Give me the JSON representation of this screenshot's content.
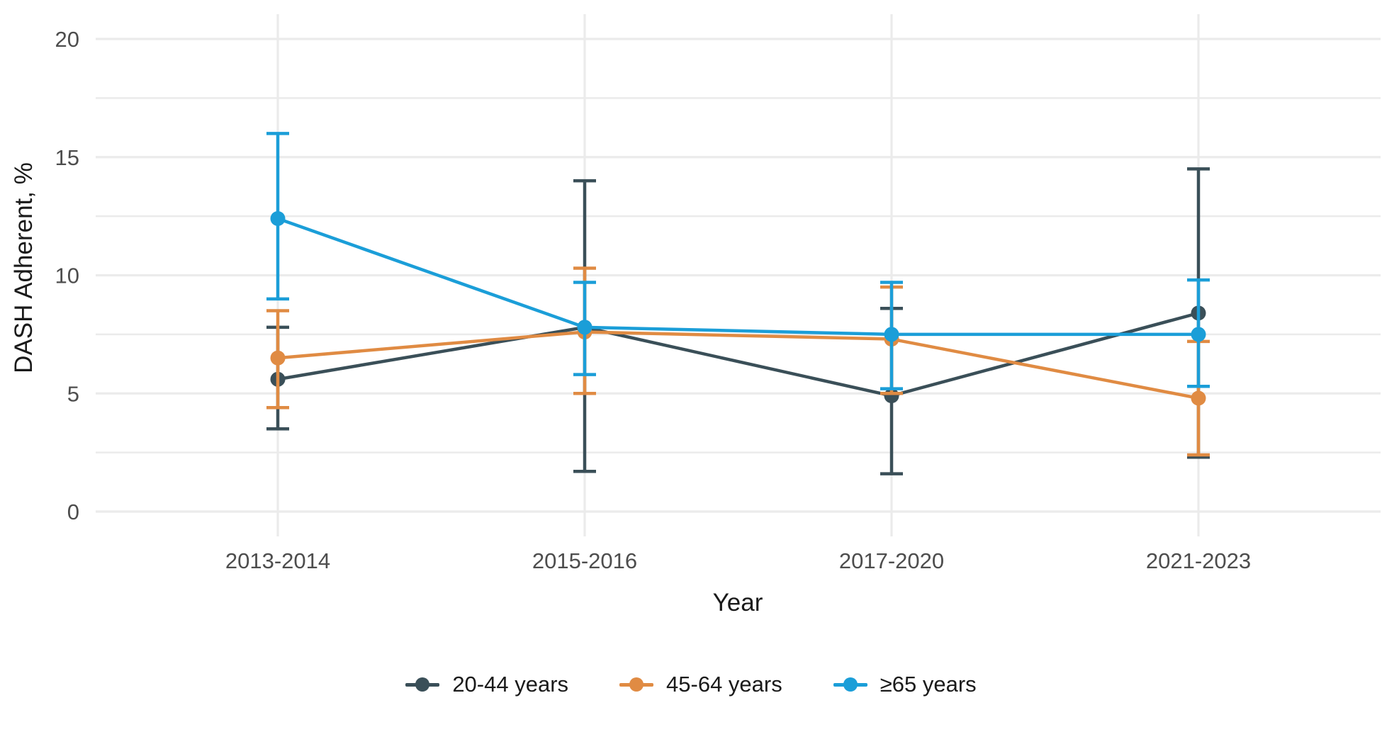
{
  "chart_data": {
    "type": "line",
    "title": "",
    "xlabel": "Year",
    "ylabel": "DASH Adherent, %",
    "categories": [
      "2013-2014",
      "2015-2016",
      "2017-2020",
      "2021-2023"
    ],
    "y_ticks": [
      0,
      5,
      10,
      15,
      20
    ],
    "y_minor_ticks": [
      2.5,
      7.5,
      12.5,
      17.5
    ],
    "ylim": [
      0,
      21
    ],
    "grid": "on",
    "legend_position": "bottom",
    "error_bars": true,
    "series": [
      {
        "name": "20-44 years",
        "color": "#3A4F58",
        "values": [
          5.6,
          7.8,
          4.9,
          8.4
        ],
        "ci_low": [
          3.5,
          1.7,
          1.6,
          2.3
        ],
        "ci_high": [
          7.8,
          14.0,
          8.6,
          14.5
        ]
      },
      {
        "name": "45-64 years",
        "color": "#E08B43",
        "values": [
          6.5,
          7.6,
          7.3,
          4.8
        ],
        "ci_low": [
          4.4,
          5.0,
          5.0,
          2.4
        ],
        "ci_high": [
          8.5,
          10.3,
          9.5,
          7.2
        ]
      },
      {
        "name": "≥65 years",
        "color": "#1B9ED8",
        "values": [
          12.4,
          7.8,
          7.5,
          7.5
        ],
        "ci_low": [
          9.0,
          5.8,
          5.2,
          5.3
        ],
        "ci_high": [
          16.0,
          9.7,
          9.7,
          9.8
        ]
      }
    ],
    "colors": {
      "grid": "#EBEBEB",
      "tick_label": "#4D4D4D",
      "axis_title": "#1A1A1A"
    }
  }
}
